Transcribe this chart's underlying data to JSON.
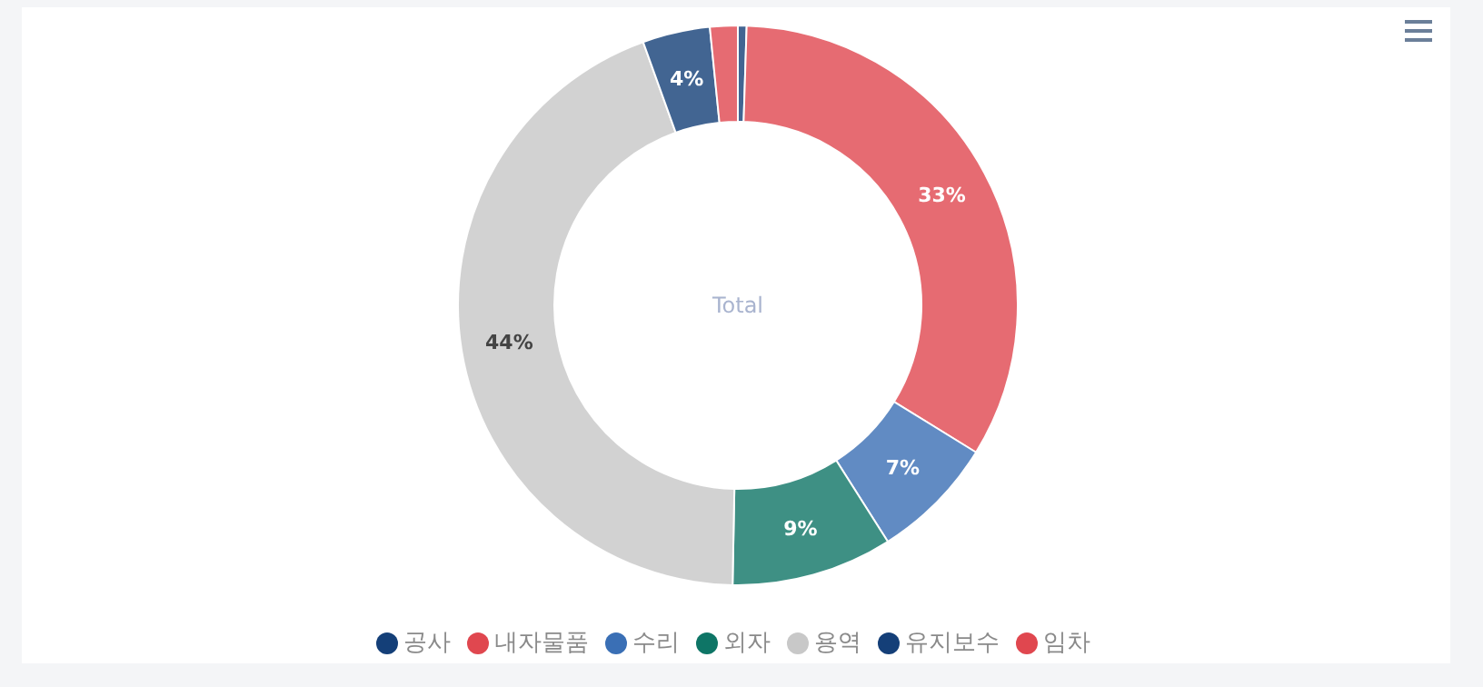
{
  "chart_data": {
    "type": "donut",
    "categories": [
      "공사",
      "내자물품",
      "수리",
      "외자",
      "용역",
      "유지보수",
      "임차"
    ],
    "values": [
      0.5,
      33.3,
      7.2,
      9.3,
      44.2,
      3.9,
      1.6
    ],
    "colors": [
      "#143f78",
      "#e0474f",
      "#3a6fb5",
      "#0e7566",
      "#c8c8c8",
      "#143f78",
      "#e0474f"
    ],
    "value_labels": [
      null,
      "33%",
      "7%",
      "9%",
      "44%",
      "4%",
      null
    ],
    "annotations": [
      "Total"
    ],
    "legend": "bottom"
  }
}
